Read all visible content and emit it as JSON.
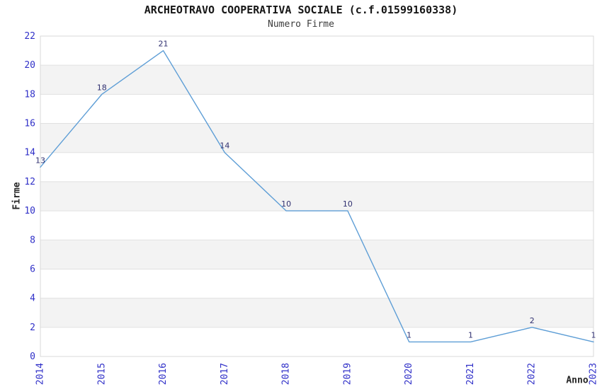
{
  "header": {
    "title": "ARCHEOTRAVO COOPERATIVA SOCIALE (c.f.01599160338)",
    "subtitle": "Numero Firme"
  },
  "chart_data": {
    "type": "line",
    "title": "ARCHEOTRAVO COOPERATIVA SOCIALE (c.f.01599160338)",
    "subtitle": "Numero Firme",
    "xlabel": "Anno",
    "ylabel": "Firme",
    "categories": [
      "2014",
      "2015",
      "2016",
      "2017",
      "2018",
      "2019",
      "2020",
      "2021",
      "2022",
      "2023"
    ],
    "series": [
      {
        "name": "Numero Firme",
        "values": [
          13,
          18,
          21,
          14,
          10,
          10,
          1,
          1,
          2,
          1
        ]
      }
    ],
    "data_labels": [
      "13",
      "18",
      "21",
      "14",
      "10",
      "10",
      "1",
      "1",
      "2",
      "1"
    ],
    "ylim": [
      0,
      22
    ],
    "yticks": [
      0,
      2,
      4,
      6,
      8,
      10,
      12,
      14,
      16,
      18,
      20,
      22
    ],
    "grid": true,
    "legend": "none",
    "band_fill_ranges": [
      [
        2,
        4
      ],
      [
        6,
        8
      ],
      [
        10,
        12
      ],
      [
        14,
        16
      ],
      [
        18,
        20
      ]
    ],
    "colors": {
      "line": "#5e9ed6",
      "tick_label": "#3030c8",
      "data_label": "#303070",
      "band_fill": "#f3f3f3",
      "gridline": "#e1e1e1",
      "plot_border": "#d8d8d8"
    }
  }
}
